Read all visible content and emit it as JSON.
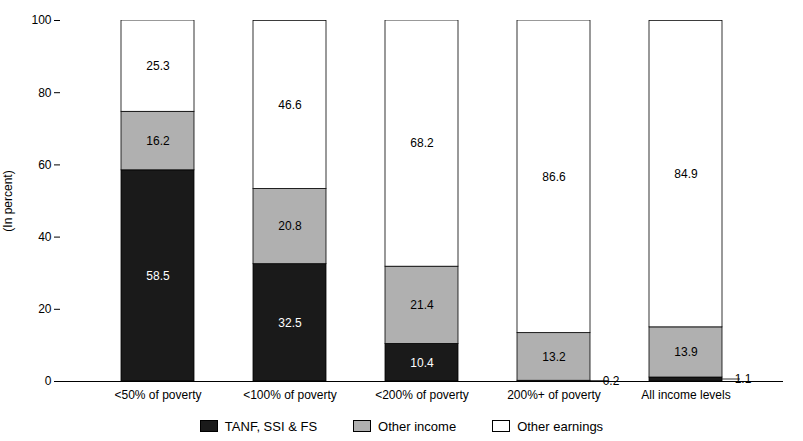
{
  "chart_data": {
    "type": "bar",
    "stacked": true,
    "data_labels": true,
    "categories": [
      "<50% of poverty",
      "<100% of poverty",
      "<200% of poverty",
      "200%+ of poverty",
      "All income levels"
    ],
    "series": [
      {
        "name": "TANF, SSI & FS",
        "color": "#1a1a1a",
        "values": [
          58.5,
          32.5,
          10.4,
          0.2,
          1.1
        ]
      },
      {
        "name": "Other income",
        "color": "#b0b0b0",
        "values": [
          16.2,
          20.8,
          21.4,
          13.2,
          13.9
        ]
      },
      {
        "name": "Other earnings",
        "color": "#ffffff",
        "values": [
          25.3,
          46.6,
          68.2,
          86.6,
          84.9
        ]
      }
    ],
    "ylabel": "(In percent)",
    "ylim": [
      0,
      100
    ],
    "yticks": [
      0,
      20,
      40,
      60,
      80,
      100
    ],
    "grid": false,
    "legend": "bottom"
  }
}
